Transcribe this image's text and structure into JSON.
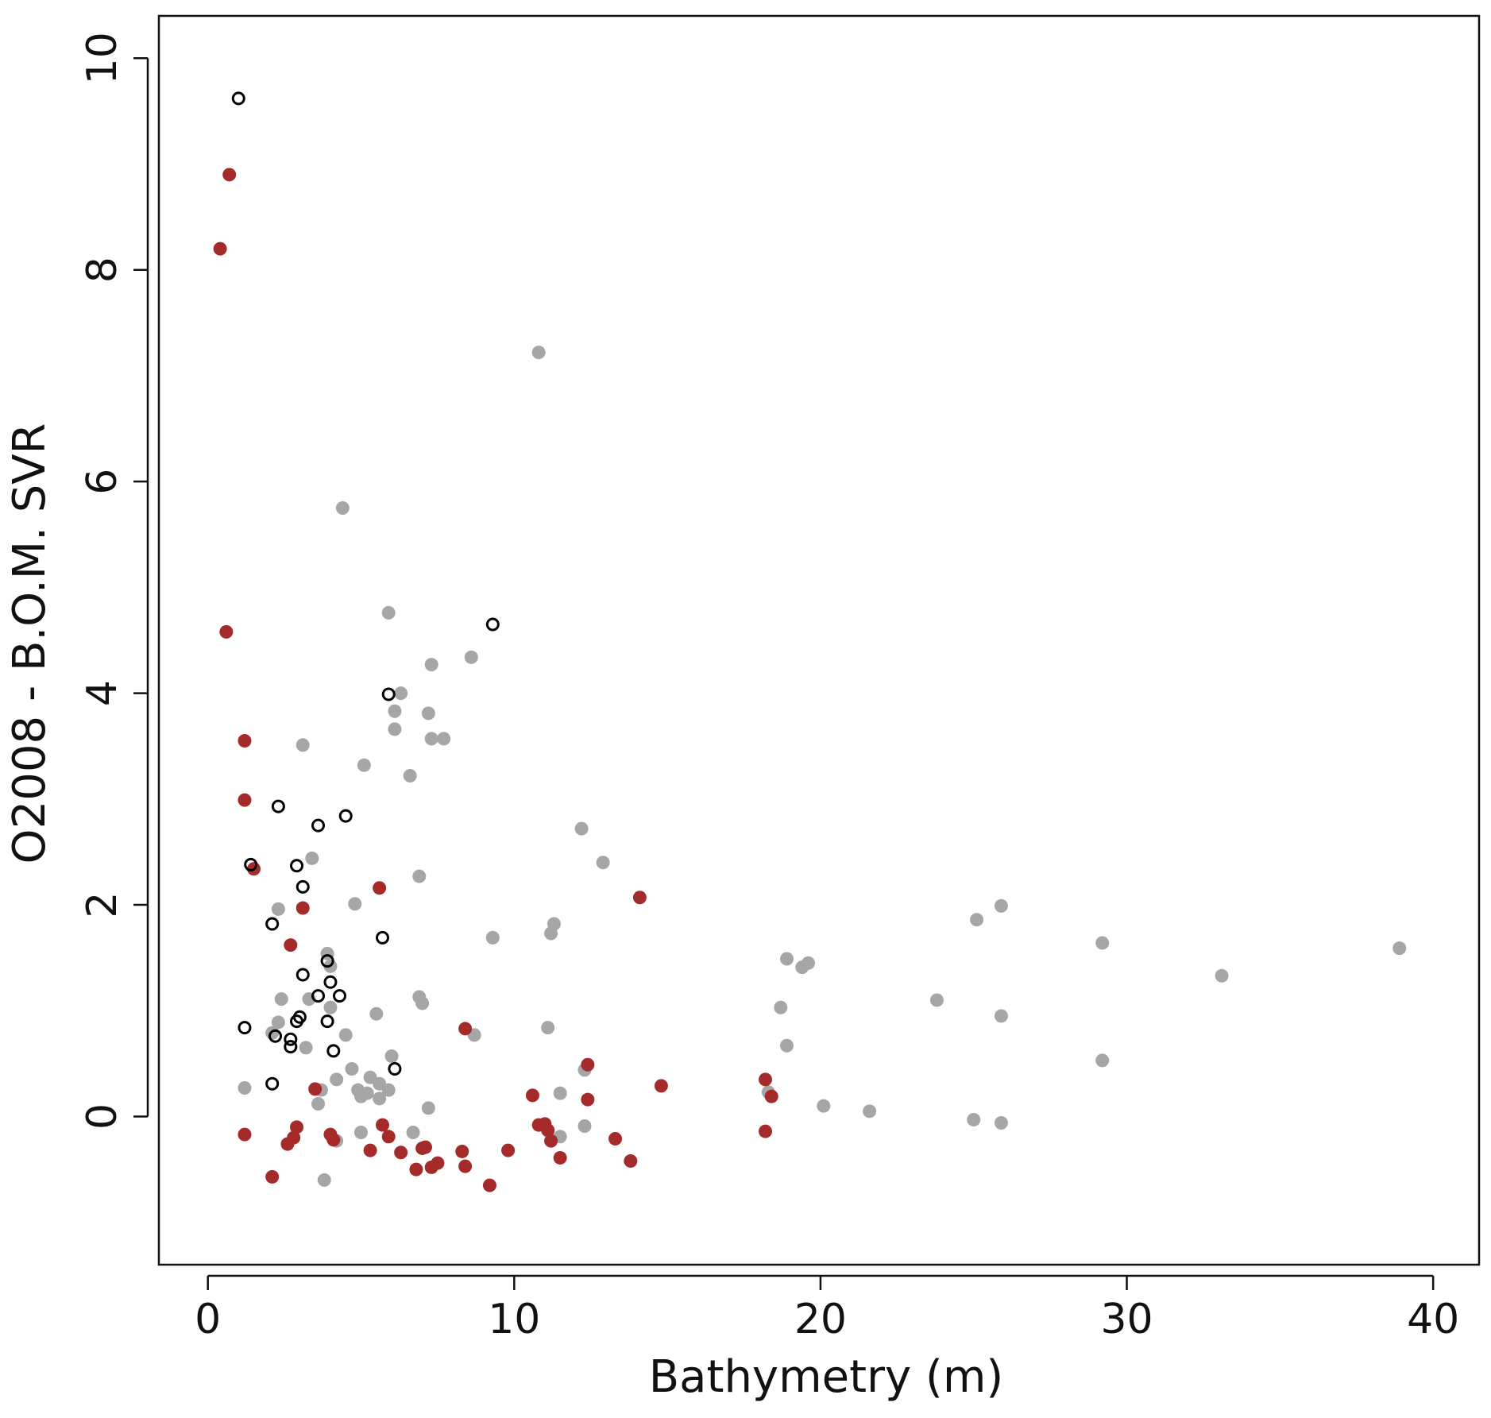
{
  "chart_data": {
    "type": "scatter",
    "title": "",
    "xlabel": "Bathymetry (m)",
    "ylabel": "O2008 - B.O.M. SVR",
    "xlim": [
      -1.6,
      41.5
    ],
    "ylim": [
      -1.4,
      10.4
    ],
    "x_ticks": [
      "0",
      "10",
      "20",
      "30",
      "40"
    ],
    "y_ticks": [
      "0",
      "2",
      "4",
      "6",
      "8",
      "10"
    ],
    "grid": false,
    "legend": "none",
    "series": [
      {
        "marker": "filled-circle",
        "color": "#a6a6a6",
        "points": [
          [
            10.8,
            7.22
          ],
          [
            4.4,
            5.75
          ],
          [
            5.9,
            4.76
          ],
          [
            8.6,
            4.34
          ],
          [
            7.3,
            4.27
          ],
          [
            6.3,
            4.0
          ],
          [
            6.1,
            3.83
          ],
          [
            7.2,
            3.81
          ],
          [
            6.1,
            3.66
          ],
          [
            7.3,
            3.57
          ],
          [
            7.7,
            3.57
          ],
          [
            3.1,
            3.51
          ],
          [
            5.1,
            3.32
          ],
          [
            6.6,
            3.22
          ],
          [
            12.2,
            2.72
          ],
          [
            12.9,
            2.4
          ],
          [
            3.4,
            2.44
          ],
          [
            6.9,
            2.27
          ],
          [
            4.8,
            2.01
          ],
          [
            2.3,
            1.96
          ],
          [
            11.3,
            1.82
          ],
          [
            11.2,
            1.73
          ],
          [
            9.3,
            1.69
          ],
          [
            25.1,
            1.86
          ],
          [
            25.9,
            1.99
          ],
          [
            29.2,
            1.64
          ],
          [
            38.9,
            1.59
          ],
          [
            33.1,
            1.33
          ],
          [
            18.9,
            1.49
          ],
          [
            19.6,
            1.45
          ],
          [
            19.4,
            1.41
          ],
          [
            3.9,
            1.54
          ],
          [
            4.0,
            1.42
          ],
          [
            2.4,
            1.11
          ],
          [
            3.3,
            1.11
          ],
          [
            6.9,
            1.13
          ],
          [
            7.0,
            1.07
          ],
          [
            4.0,
            1.03
          ],
          [
            18.7,
            1.03
          ],
          [
            23.8,
            1.1
          ],
          [
            25.9,
            0.95
          ],
          [
            5.5,
            0.97
          ],
          [
            2.3,
            0.89
          ],
          [
            2.1,
            0.79
          ],
          [
            11.1,
            0.84
          ],
          [
            8.7,
            0.77
          ],
          [
            4.5,
            0.77
          ],
          [
            3.2,
            0.65
          ],
          [
            18.9,
            0.67
          ],
          [
            6.0,
            0.57
          ],
          [
            29.2,
            0.53
          ],
          [
            12.3,
            0.44
          ],
          [
            4.7,
            0.45
          ],
          [
            4.2,
            0.35
          ],
          [
            5.3,
            0.37
          ],
          [
            5.6,
            0.31
          ],
          [
            1.2,
            0.27
          ],
          [
            3.7,
            0.25
          ],
          [
            4.9,
            0.25
          ],
          [
            5.2,
            0.22
          ],
          [
            5.9,
            0.25
          ],
          [
            11.5,
            0.22
          ],
          [
            18.3,
            0.23
          ],
          [
            3.6,
            0.12
          ],
          [
            5.0,
            0.19
          ],
          [
            5.6,
            0.17
          ],
          [
            7.2,
            0.08
          ],
          [
            20.1,
            0.1
          ],
          [
            21.6,
            0.05
          ],
          [
            25.0,
            -0.03
          ],
          [
            25.9,
            -0.06
          ],
          [
            12.3,
            -0.09
          ],
          [
            5.0,
            -0.15
          ],
          [
            6.7,
            -0.15
          ],
          [
            11.5,
            -0.19
          ],
          [
            4.2,
            -0.23
          ],
          [
            3.8,
            -0.6
          ]
        ]
      },
      {
        "marker": "filled-circle",
        "color": "#a52a2a",
        "points": [
          [
            0.7,
            8.9
          ],
          [
            0.4,
            8.2
          ],
          [
            0.6,
            4.58
          ],
          [
            1.2,
            3.55
          ],
          [
            1.2,
            2.99
          ],
          [
            1.5,
            2.34
          ],
          [
            5.6,
            2.16
          ],
          [
            14.1,
            2.07
          ],
          [
            3.1,
            1.97
          ],
          [
            2.7,
            1.62
          ],
          [
            8.4,
            0.83
          ],
          [
            12.4,
            0.49
          ],
          [
            14.8,
            0.29
          ],
          [
            18.2,
            0.35
          ],
          [
            18.4,
            0.19
          ],
          [
            3.5,
            0.26
          ],
          [
            10.6,
            0.2
          ],
          [
            12.4,
            0.16
          ],
          [
            18.2,
            -0.14
          ],
          [
            1.2,
            -0.17
          ],
          [
            2.9,
            -0.1
          ],
          [
            2.8,
            -0.2
          ],
          [
            2.6,
            -0.26
          ],
          [
            4.0,
            -0.17
          ],
          [
            4.1,
            -0.22
          ],
          [
            5.7,
            -0.08
          ],
          [
            5.9,
            -0.19
          ],
          [
            10.8,
            -0.08
          ],
          [
            11.0,
            -0.07
          ],
          [
            11.1,
            -0.13
          ],
          [
            11.2,
            -0.23
          ],
          [
            13.3,
            -0.21
          ],
          [
            5.3,
            -0.32
          ],
          [
            6.3,
            -0.34
          ],
          [
            7.0,
            -0.3
          ],
          [
            7.1,
            -0.29
          ],
          [
            8.3,
            -0.33
          ],
          [
            9.8,
            -0.32
          ],
          [
            11.5,
            -0.39
          ],
          [
            13.8,
            -0.42
          ],
          [
            7.5,
            -0.44
          ],
          [
            7.3,
            -0.48
          ],
          [
            8.4,
            -0.47
          ],
          [
            6.8,
            -0.5
          ],
          [
            2.1,
            -0.57
          ],
          [
            9.2,
            -0.65
          ]
        ]
      },
      {
        "marker": "open-circle",
        "color": "#000000",
        "points": [
          [
            1.0,
            9.62
          ],
          [
            9.3,
            4.65
          ],
          [
            5.9,
            3.99
          ],
          [
            2.3,
            2.93
          ],
          [
            4.5,
            2.84
          ],
          [
            3.6,
            2.75
          ],
          [
            1.4,
            2.38
          ],
          [
            2.9,
            2.37
          ],
          [
            3.1,
            2.17
          ],
          [
            2.1,
            1.82
          ],
          [
            5.7,
            1.69
          ],
          [
            3.9,
            1.47
          ],
          [
            3.1,
            1.34
          ],
          [
            4.0,
            1.27
          ],
          [
            3.6,
            1.14
          ],
          [
            4.3,
            1.14
          ],
          [
            3.0,
            0.94
          ],
          [
            2.9,
            0.9
          ],
          [
            3.9,
            0.9
          ],
          [
            1.2,
            0.84
          ],
          [
            2.2,
            0.76
          ],
          [
            2.7,
            0.73
          ],
          [
            2.7,
            0.66
          ],
          [
            4.1,
            0.62
          ],
          [
            6.1,
            0.45
          ],
          [
            2.1,
            0.31
          ]
        ]
      }
    ]
  }
}
